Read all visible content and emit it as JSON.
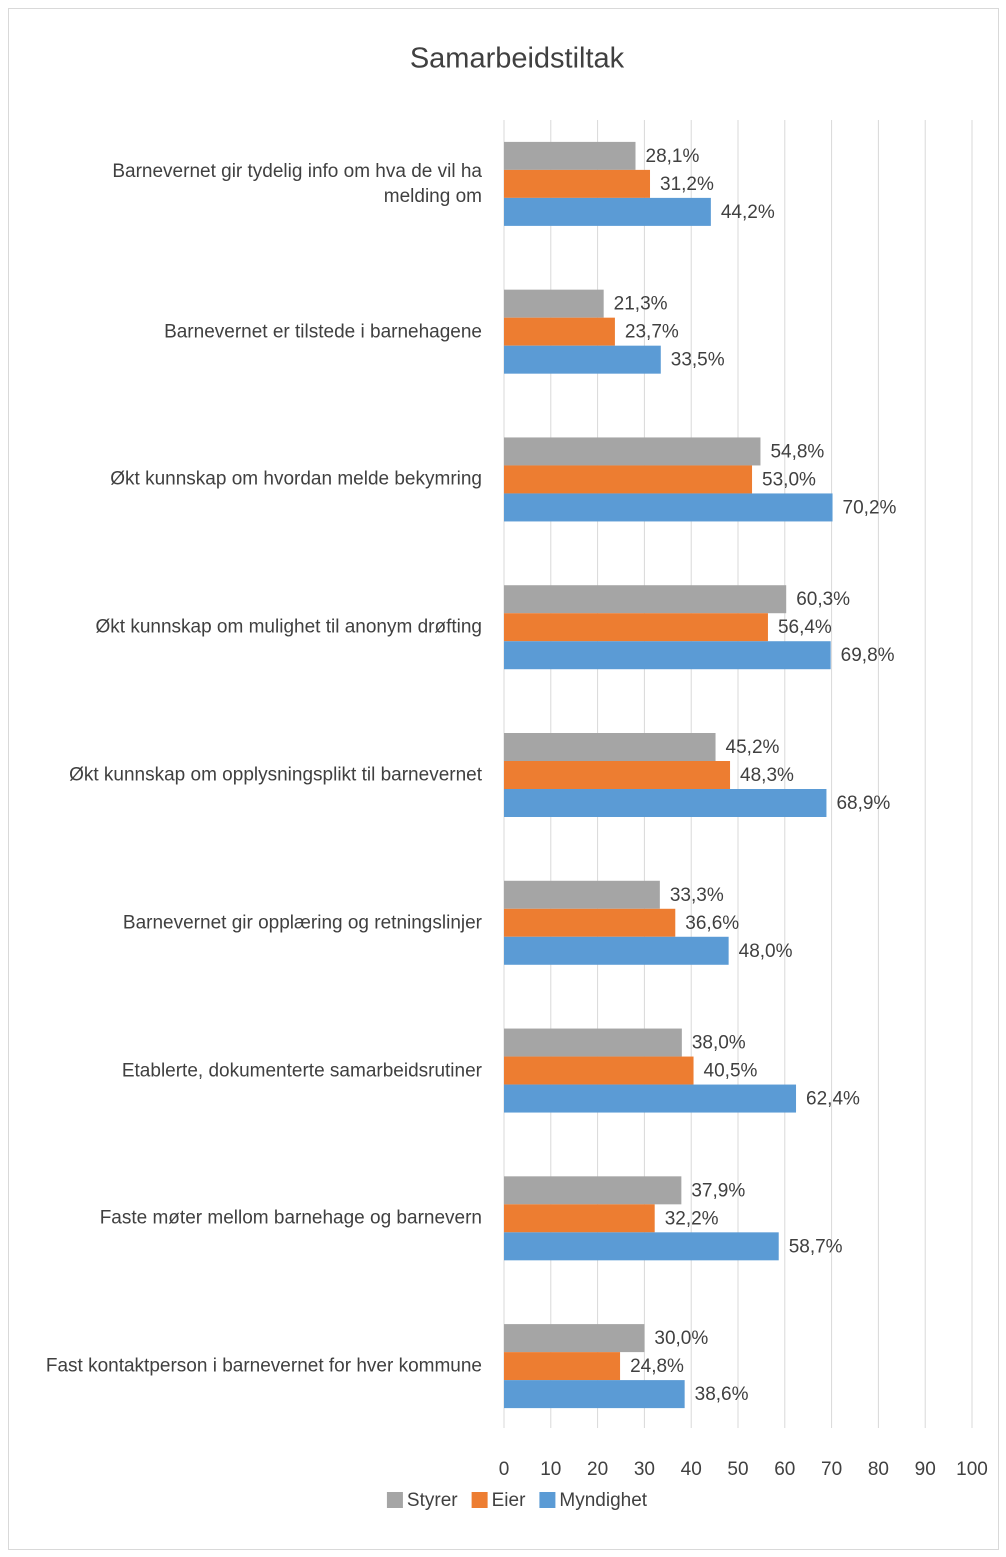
{
  "chart_data": {
    "type": "hbar",
    "title": "Samarbeidstiltak",
    "categories": [
      "Barnevernet gir tydelig info om hva de vil ha melding om",
      "Barnevernet er tilstede i barnehagene",
      "Økt kunnskap om hvordan melde bekymring",
      "Økt kunnskap om mulighet til anonym drøfting",
      "Økt kunnskap om opplysningsplikt til barnevernet",
      "Barnevernet gir opplæring og retningslinjer",
      "Etablerte, dokumenterte samarbeidsrutiner",
      "Faste møter mellom barnehage og barnevern",
      "Fast kontaktperson i barnevernet for hver kommune"
    ],
    "series": [
      {
        "name": "Styrer",
        "color": "#a5a5a5",
        "values": [
          28.1,
          21.3,
          54.8,
          60.3,
          45.2,
          33.3,
          38.0,
          37.9,
          30.0
        ],
        "value_labels": [
          "28,1%",
          "21,3%",
          "54,8%",
          "60,3%",
          "45,2%",
          "33,3%",
          "38,0%",
          "37,9%",
          "30,0%"
        ]
      },
      {
        "name": "Eier",
        "color": "#ed7d31",
        "values": [
          31.2,
          23.7,
          53.0,
          56.4,
          48.3,
          36.6,
          40.5,
          32.2,
          24.8
        ],
        "value_labels": [
          "31,2%",
          "23,7%",
          "53,0%",
          "56,4%",
          "48,3%",
          "36,6%",
          "40,5%",
          "32,2%",
          "24,8%"
        ]
      },
      {
        "name": "Myndighet",
        "color": "#5b9bd5",
        "values": [
          44.2,
          33.5,
          70.2,
          69.8,
          68.9,
          48.0,
          62.4,
          58.7,
          38.6
        ],
        "value_labels": [
          "44,2%",
          "33,5%",
          "70,2%",
          "69,8%",
          "68,9%",
          "48,0%",
          "62,4%",
          "58,7%",
          "38,6%"
        ]
      }
    ],
    "xlim": [
      0,
      100
    ],
    "xticks": [
      0,
      10,
      20,
      30,
      40,
      50,
      60,
      70,
      80,
      90,
      100
    ],
    "grid": true,
    "legend": "bottom"
  }
}
